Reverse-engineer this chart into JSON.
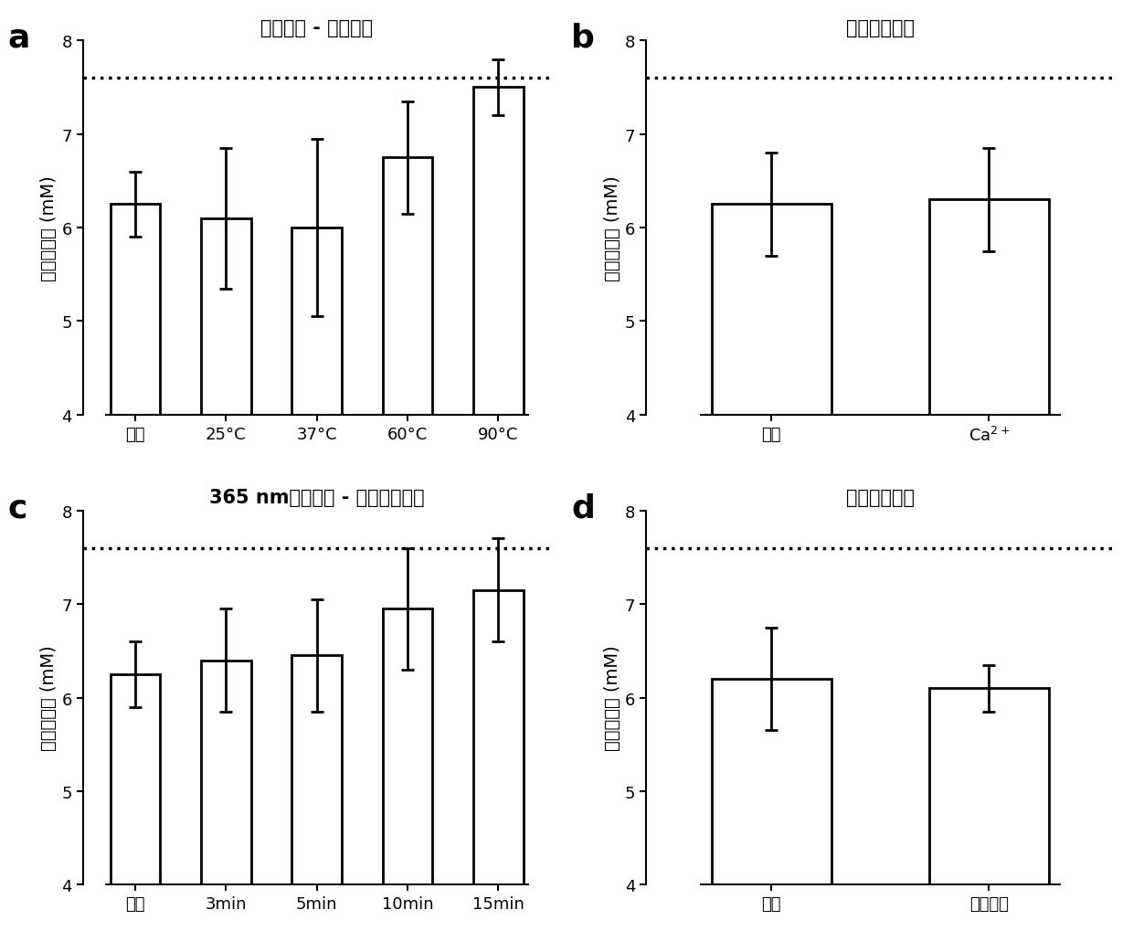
{
  "panels": [
    {
      "label": "a",
      "title": "温度变化 - 明胶凝胶",
      "categories": [
        "对照",
        "25°C",
        "37°C",
        "60°C",
        "90°C"
      ],
      "values": [
        6.25,
        6.1,
        6.0,
        6.75,
        7.5
      ],
      "errors": [
        0.35,
        0.75,
        0.95,
        0.6,
        0.3
      ],
      "hline": 7.6,
      "ylim": [
        4,
        8
      ],
      "yticks": [
        4,
        5,
        6,
        7,
        8
      ]
    },
    {
      "label": "b",
      "title": "海藻酸钠交联",
      "categories": [
        "对照",
        "Ca$^{2+}$"
      ],
      "values": [
        6.25,
        6.3
      ],
      "errors": [
        0.55,
        0.55
      ],
      "hline": 7.6,
      "ylim": [
        4,
        8
      ],
      "yticks": [
        4,
        5,
        6,
        7,
        8
      ]
    },
    {
      "label": "c",
      "title": "365 nm紫外辐射 - 透明质酸固化",
      "categories": [
        "对照",
        "3min",
        "5min",
        "10min",
        "15min"
      ],
      "values": [
        6.25,
        6.4,
        6.45,
        6.95,
        7.15
      ],
      "errors": [
        0.35,
        0.55,
        0.6,
        0.65,
        0.55
      ],
      "hline": 7.6,
      "ylim": [
        4,
        8
      ],
      "yticks": [
        4,
        5,
        6,
        7,
        8
      ]
    },
    {
      "label": "d",
      "title": "聚乙烯醇凝胶",
      "categories": [
        "对照",
        "聚乙烯醇"
      ],
      "values": [
        6.2,
        6.1
      ],
      "errors": [
        0.55,
        0.25
      ],
      "hline": 7.6,
      "ylim": [
        4,
        8
      ],
      "yticks": [
        4,
        5,
        6,
        7,
        8
      ]
    }
  ],
  "ylabel": "葡萄糖浓度 (mM)",
  "bar_color": "white",
  "bar_edgecolor": "black",
  "bar_linewidth": 2.0,
  "error_color": "black",
  "error_capsize": 5,
  "error_linewidth": 2.0,
  "hline_color": "black",
  "hline_style": "dotted",
  "hline_linewidth": 2.5,
  "background_color": "white",
  "label_fontsize": 26,
  "title_fontsize": 15,
  "tick_fontsize": 13,
  "ylabel_fontsize": 14
}
